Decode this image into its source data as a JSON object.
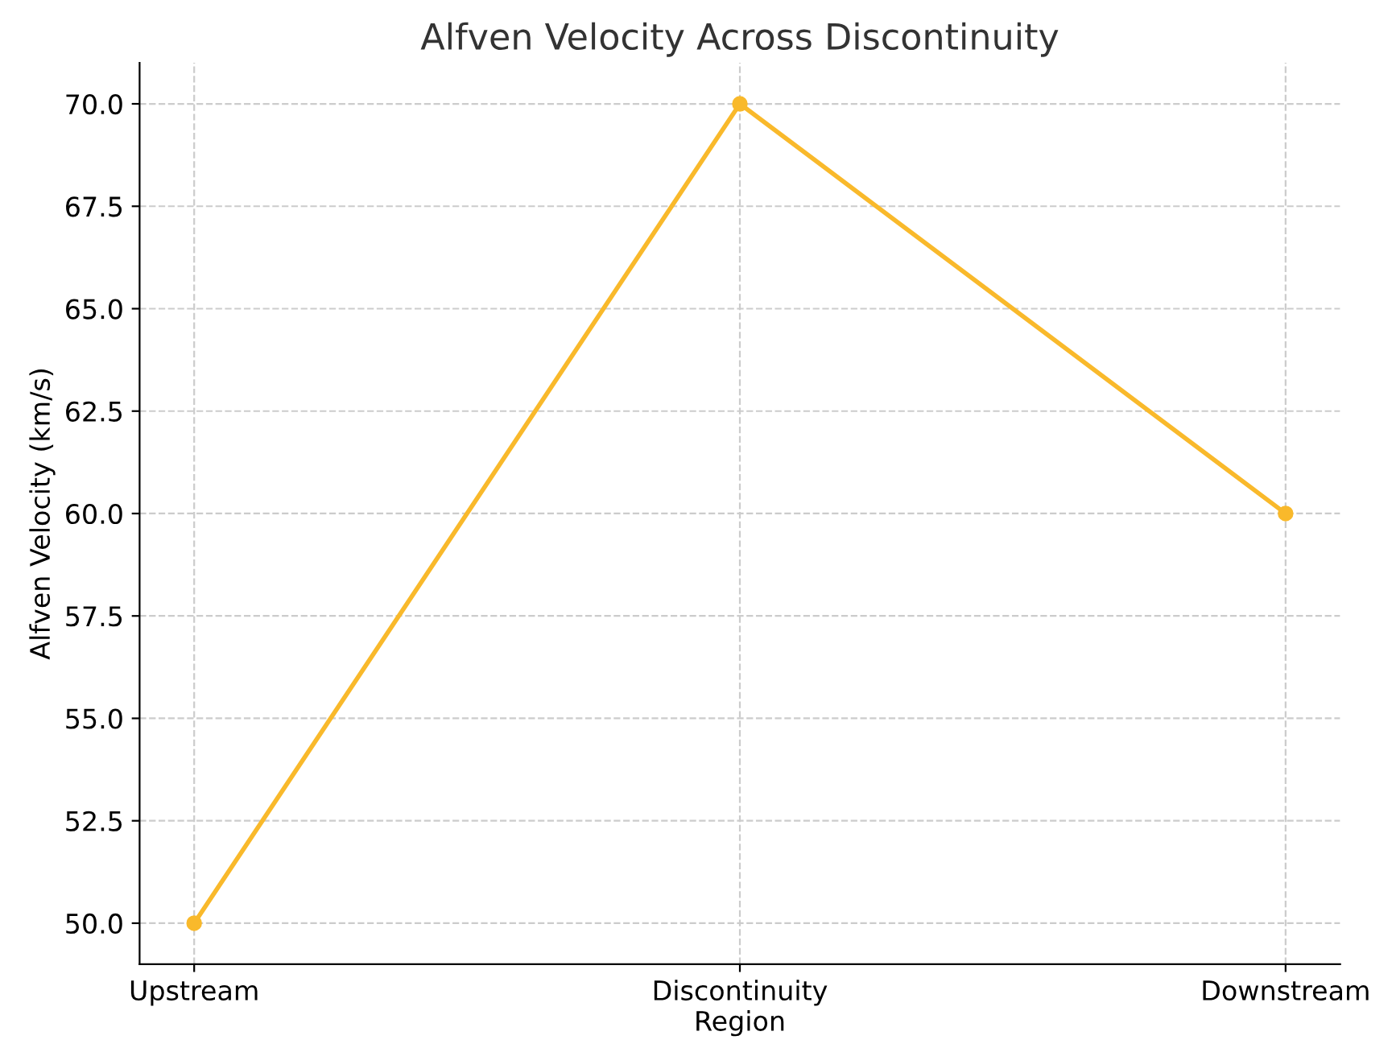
{
  "chart_data": {
    "type": "line",
    "title": "Alfven Velocity Across Discontinuity",
    "xlabel": "Region",
    "ylabel": "Alfven Velocity (km/s)",
    "categories": [
      "Upstream",
      "Discontinuity",
      "Downstream"
    ],
    "series": [
      {
        "color": "#f9b92b",
        "values": [
          50,
          70,
          60
        ]
      }
    ],
    "ylim": [
      49,
      71
    ],
    "yticks": [
      {
        "value": 50,
        "label": "50.0"
      },
      {
        "value": 52.5,
        "label": "52.5"
      },
      {
        "value": 55,
        "label": "55.0"
      },
      {
        "value": 57.5,
        "label": "57.5"
      },
      {
        "value": 60,
        "label": "60.0"
      },
      {
        "value": 62.5,
        "label": "62.5"
      },
      {
        "value": 65,
        "label": "65.0"
      },
      {
        "value": 67.5,
        "label": "67.5"
      },
      {
        "value": 70,
        "label": "70.0"
      }
    ],
    "grid": true,
    "marker": "circle",
    "line_style": "solid"
  }
}
